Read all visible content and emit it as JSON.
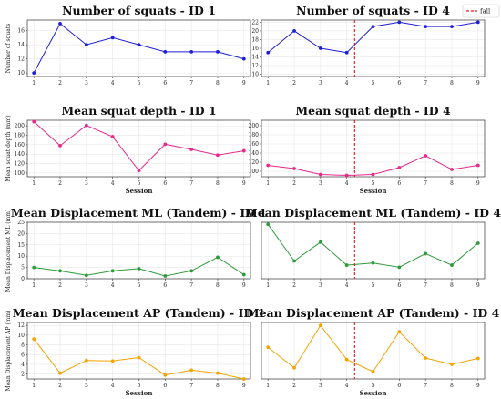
{
  "legend": {
    "label": "fall",
    "color": "#e41a1c"
  },
  "chart_data": [
    {
      "type": "line",
      "title": "Number of squats - ID 1",
      "xlabel": "",
      "ylabel": "Number of squats",
      "x": [
        1,
        2,
        3,
        4,
        5,
        6,
        7,
        8,
        9
      ],
      "values": [
        10,
        17,
        14,
        15,
        14,
        13,
        13,
        13,
        12
      ],
      "ylim": [
        9.5,
        17.5
      ],
      "yticks": [
        10,
        12,
        14,
        16
      ],
      "color": "#1f1fd6",
      "fall_x": null
    },
    {
      "type": "line",
      "title": "Number of squats - ID 4",
      "xlabel": "",
      "ylabel": "",
      "x": [
        1,
        2,
        3,
        4,
        5,
        6,
        7,
        8,
        9
      ],
      "values": [
        15,
        20,
        16,
        15,
        21,
        22,
        21,
        21,
        22
      ],
      "ylim": [
        9.5,
        22.5
      ],
      "yticks": [
        10,
        12,
        14,
        16,
        18,
        20,
        22
      ],
      "color": "#1f1fd6",
      "fall_x": 4.3
    },
    {
      "type": "line",
      "title": "Mean squat depth - ID 1",
      "xlabel": "Session",
      "ylabel": "Mean squat depth (mm)",
      "x": [
        1,
        2,
        3,
        4,
        5,
        6,
        7,
        8,
        9
      ],
      "values": [
        209,
        158,
        201,
        177,
        105,
        161,
        150,
        138,
        147
      ],
      "ylim": [
        92,
        212
      ],
      "yticks": [
        100,
        120,
        140,
        160,
        180,
        200
      ],
      "color": "#e7298a",
      "fall_x": null
    },
    {
      "type": "line",
      "title": "Mean squat depth - ID 4",
      "xlabel": "Session",
      "ylabel": "",
      "x": [
        1,
        2,
        3,
        4,
        5,
        6,
        7,
        8,
        9
      ],
      "values": [
        113,
        106,
        93,
        91,
        93,
        108,
        134,
        104,
        113
      ],
      "ylim": [
        88,
        212
      ],
      "yticks": [
        100,
        120,
        140,
        160,
        180,
        200
      ],
      "color": "#e7298a",
      "fall_x": 4.3
    },
    {
      "type": "line",
      "title": "Mean Displacement ML (Tandem) - ID 1",
      "xlabel": "",
      "ylabel": "Mean Displacement ML (mm)",
      "x": [
        1,
        2,
        3,
        4,
        5,
        6,
        7,
        8,
        9
      ],
      "values": [
        5,
        3.5,
        1.5,
        3.5,
        4.5,
        1.2,
        3.5,
        9.5,
        1.8
      ],
      "ylim": [
        0,
        25
      ],
      "yticks": [
        0,
        5,
        10,
        15,
        20,
        25
      ],
      "color": "#2e9a3a",
      "fall_x": null
    },
    {
      "type": "line",
      "title": "Mean Displacement ML (Tandem) - ID 4",
      "xlabel": "",
      "ylabel": "",
      "x": [
        1,
        2,
        3,
        4,
        5,
        6,
        7,
        8,
        9
      ],
      "values": [
        26,
        8.5,
        17.5,
        6.5,
        7.5,
        5.5,
        12,
        6.5,
        17
      ],
      "ylim": [
        0,
        27
      ],
      "yticks": [],
      "color": "#2e9a3a",
      "fall_x": 4.3
    },
    {
      "type": "line",
      "title": "Mean Displacement AP (Tandem) - ID 1",
      "xlabel": "Session",
      "ylabel": "Mean Displacement AP (mm)",
      "x": [
        1,
        2,
        3,
        4,
        5,
        6,
        7,
        8,
        9
      ],
      "values": [
        9.2,
        2.2,
        4.8,
        4.7,
        5.4,
        1.8,
        2.8,
        2.2,
        1
      ],
      "ylim": [
        1,
        12.6
      ],
      "yticks": [
        2,
        4,
        6,
        8,
        10,
        12
      ],
      "color": "#f5a300",
      "fall_x": null
    },
    {
      "type": "line",
      "title": "Mean Displacement AP (Tandem) - ID 4",
      "xlabel": "Session",
      "ylabel": "",
      "x": [
        1,
        2,
        3,
        4,
        5,
        6,
        7,
        8,
        9
      ],
      "values": [
        7.5,
        3.3,
        12,
        5,
        2.5,
        10.7,
        5.3,
        4,
        5.2
      ],
      "ylim": [
        1,
        12.6
      ],
      "yticks": [],
      "color": "#f5a300",
      "fall_x": 4.3
    }
  ]
}
